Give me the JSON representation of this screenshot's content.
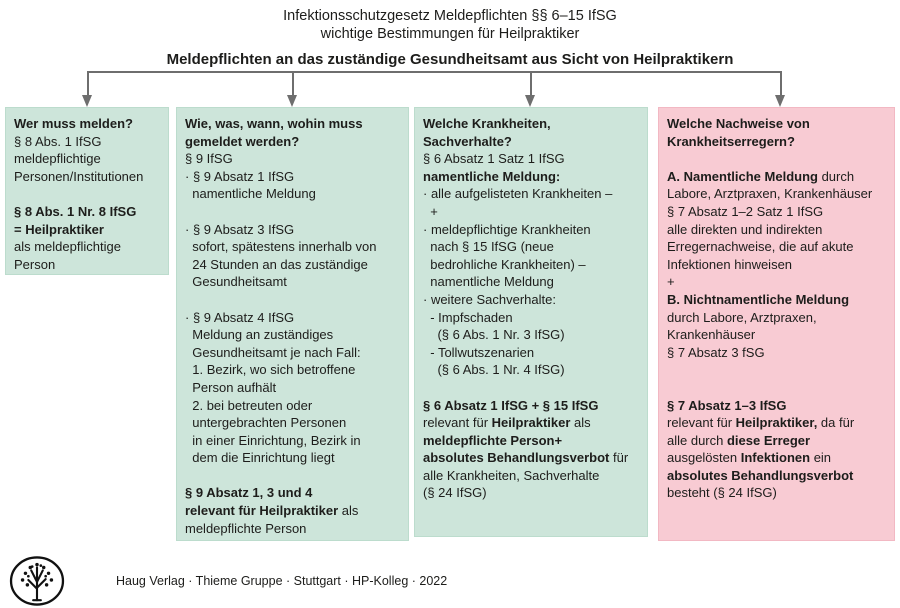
{
  "title": {
    "line1": "Infektionsschutzgesetz Meldepflichten §§ 6–15 IfSG",
    "line2": "wichtige Bestimmungen für Heilpraktiker",
    "line3": "Meldepflichten an das zuständige Gesundheitsamt aus Sicht von Heilpraktikern"
  },
  "colors": {
    "box_green": "#cde5da",
    "box_pink": "#f8cbd3",
    "connector_gray": "#6e6e6e",
    "text": "#1d1d1b"
  },
  "boxes": [
    {
      "id": "who-must-report",
      "color": "green",
      "lines": [
        [
          {
            "t": "Wer muss melden?",
            "b": 1
          }
        ],
        [
          "§ 8 Abs. 1 IfSG"
        ],
        [
          "meldepflichtige"
        ],
        [
          "Personen/Institutionen"
        ],
        [],
        [
          {
            "t": "§ 8 Abs. 1 Nr. 8 IfSG",
            "b": 1
          }
        ],
        [
          {
            "t": "= Heilpraktiker",
            "b": 1
          }
        ],
        [
          "als meldepflichtige"
        ],
        [
          "Person"
        ]
      ]
    },
    {
      "id": "how-what-when-where",
      "color": "green",
      "lines": [
        [
          {
            "t": "Wie, was, wann, wohin muss",
            "b": 1
          }
        ],
        [
          {
            "t": "gemeldet werden?",
            "b": 1
          }
        ],
        [
          "§ 9 IfSG"
        ],
        [
          "· § 9 Absatz 1 IfSG"
        ],
        [
          "  namentliche Meldung"
        ],
        [],
        [
          "· § 9 Absatz 3 IfSG"
        ],
        [
          "  sofort, spätestens innerhalb von"
        ],
        [
          "  24 Stunden an das zuständige"
        ],
        [
          "  Gesundheitsamt"
        ],
        [],
        [
          "· § 9 Absatz 4 IfSG"
        ],
        [
          "  Meldung an zuständiges"
        ],
        [
          "  Gesundheitsamt je nach Fall:"
        ],
        [
          "  1. Bezirk, wo sich betroffene"
        ],
        [
          "  Person aufhält"
        ],
        [
          "  2. bei betreuten oder"
        ],
        [
          "  untergebrachten Personen"
        ],
        [
          "  in einer Einrichtung, Bezirk in"
        ],
        [
          "  dem die Einrichtung liegt"
        ],
        [],
        [
          {
            "t": "§ 9 Absatz 1, 3 und 4",
            "b": 1
          }
        ],
        [
          {
            "t": "relevant für Heilpraktiker",
            "b": 1
          },
          {
            "t": " als"
          }
        ],
        [
          "meldepflichte Person"
        ]
      ]
    },
    {
      "id": "which-diseases",
      "color": "green",
      "lines": [
        [
          {
            "t": "Welche Krankheiten,",
            "b": 1
          }
        ],
        [
          {
            "t": "Sachverhalte?",
            "b": 1
          }
        ],
        [
          "§ 6 Absatz 1 Satz 1 IfSG"
        ],
        [
          {
            "t": "namentliche Meldung:",
            "b": 1
          }
        ],
        [
          "· alle aufgelisteten Krankheiten –"
        ],
        [
          "  +"
        ],
        [
          "· meldepflichtige Krankheiten"
        ],
        [
          "  nach § 15 IfSG (neue"
        ],
        [
          "  bedrohliche Krankheiten) –"
        ],
        [
          "  namentliche Meldung"
        ],
        [
          "· weitere Sachverhalte:"
        ],
        [
          "  - Impfschaden"
        ],
        [
          "    (§ 6 Abs. 1 Nr. 3 IfSG)"
        ],
        [
          "  - Tollwutszenarien"
        ],
        [
          "    (§ 6 Abs. 1 Nr. 4 IfSG)"
        ],
        [],
        [
          {
            "t": "§ 6 Absatz 1 IfSG + § 15 IfSG",
            "b": 1
          }
        ],
        [
          {
            "t": "relevant für "
          },
          {
            "t": "Heilpraktiker",
            "b": 1
          },
          {
            "t": " als"
          }
        ],
        [
          {
            "t": "meldepflichte Person+",
            "b": 1
          }
        ],
        [
          {
            "t": "absolutes Behandlungsverbot",
            "b": 1
          },
          {
            "t": " für"
          }
        ],
        [
          "alle Krankheiten, Sachverhalte"
        ],
        [
          "(§ 24 IfSG)"
        ]
      ]
    },
    {
      "id": "which-pathogen-evidence",
      "color": "pink",
      "lines": [
        [
          {
            "t": "Welche Nachweise von",
            "b": 1
          }
        ],
        [
          {
            "t": "Krankheitserregern?",
            "b": 1
          }
        ],
        [],
        [
          {
            "t": "A. Namentliche Meldung",
            "b": 1
          },
          {
            "t": " durch"
          }
        ],
        [
          "Labore, Arztpraxen, Krankenhäuser"
        ],
        [
          "§ 7 Absatz 1–2 Satz 1 IfSG"
        ],
        [
          "alle direkten und indirekten"
        ],
        [
          "Erregernachweise, die auf akute"
        ],
        [
          "Infektionen hinweisen"
        ],
        [
          "+"
        ],
        [
          {
            "t": "B. Nichtnamentliche Meldung",
            "b": 1
          }
        ],
        [
          "durch Labore, Arztpraxen,"
        ],
        [
          "Krankenhäuser"
        ],
        [
          "§ 7 Absatz 3 fSG"
        ],
        [],
        [],
        [
          {
            "t": "§ 7 Absatz 1–3 IfSG",
            "b": 1
          }
        ],
        [
          {
            "t": "relevant für "
          },
          {
            "t": "Heilpraktiker,",
            "b": 1
          },
          {
            "t": " da für"
          }
        ],
        [
          {
            "t": "alle durch "
          },
          {
            "t": "diese Erreger",
            "b": 1
          }
        ],
        [
          {
            "t": "ausgelösten "
          },
          {
            "t": "Infektionen",
            "b": 1
          },
          {
            "t": " ein"
          }
        ],
        [
          {
            "t": "absolutes Behandlungsverbot",
            "b": 1
          }
        ],
        [
          "besteht (§ 24 IfSG)"
        ]
      ]
    }
  ],
  "footer": {
    "text": "Haug Verlag · Thieme Gruppe · Stuttgart · HP-Kolleg · 2022",
    "logo": "thieme-tree-logo"
  }
}
